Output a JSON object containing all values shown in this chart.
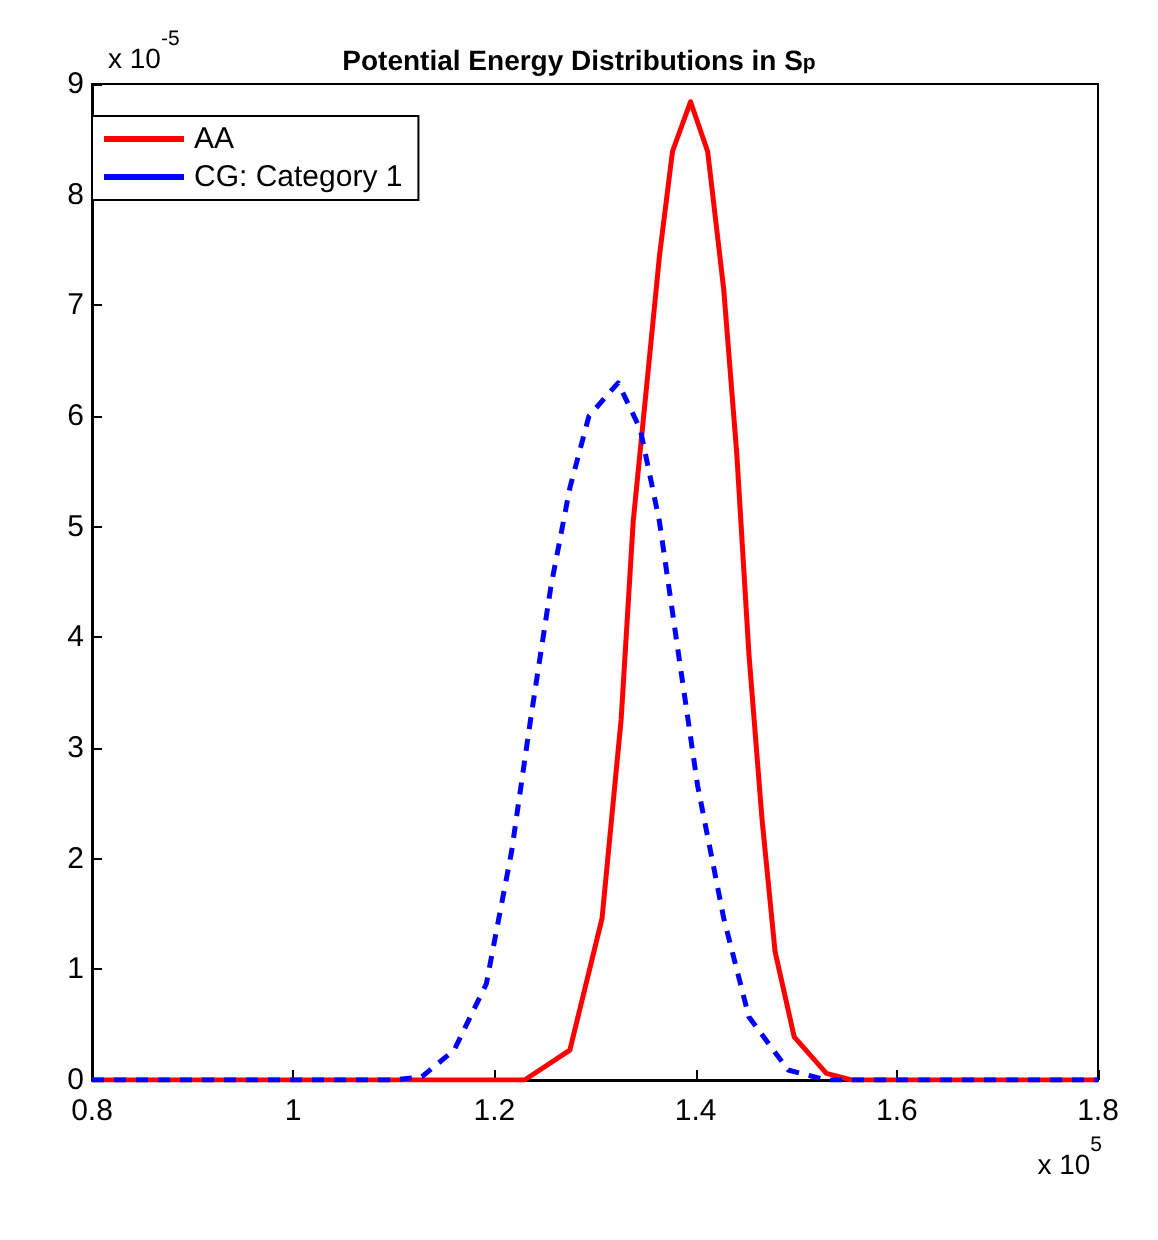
{
  "chart_data": {
    "type": "line",
    "title": "Potential Energy Distributions in S$_{p}$",
    "annotations": [
      "x 10$^{-5}$",
      "x 10$^{5}$"
    ],
    "xlim": [
      0.8,
      1.8
    ],
    "xticks": [
      0.8,
      1,
      1.2,
      1.4,
      1.6,
      1.8
    ],
    "ylim": [
      0,
      9
    ],
    "yticks": [
      0,
      1,
      2,
      3,
      4,
      5,
      6,
      7,
      8,
      9
    ],
    "grid": false,
    "legend": "top left",
    "marker": "none",
    "series": [
      {
        "name": "AA",
        "color": "#ff0000",
        "line_style": "solid",
        "x": [
          0.8,
          1.0,
          1.2,
          1.23,
          1.275,
          1.307,
          1.326,
          1.338,
          1.351,
          1.364,
          1.377,
          1.395,
          1.412,
          1.428,
          1.441,
          1.453,
          1.466,
          1.479,
          1.498,
          1.53,
          1.555,
          1.6,
          1.8
        ],
        "values": [
          0,
          0,
          0,
          0,
          0.27,
          1.46,
          3.26,
          5.05,
          6.24,
          7.44,
          8.39,
          8.84,
          8.39,
          7.14,
          5.65,
          3.85,
          2.36,
          1.16,
          0.39,
          0.06,
          0,
          0,
          0
        ]
      },
      {
        "name": "CG: Category 1",
        "color": "#0000ff",
        "line_style": "dashed",
        "x": [
          0.8,
          1.0,
          1.1,
          1.128,
          1.16,
          1.192,
          1.217,
          1.236,
          1.256,
          1.275,
          1.294,
          1.323,
          1.345,
          1.364,
          1.383,
          1.402,
          1.428,
          1.453,
          1.492,
          1.53,
          1.6,
          1.8
        ],
        "values": [
          0,
          0,
          0,
          0.03,
          0.27,
          0.87,
          2.06,
          3.26,
          4.45,
          5.35,
          6.0,
          6.3,
          5.88,
          5.05,
          3.85,
          2.66,
          1.46,
          0.57,
          0.09,
          0,
          0,
          0
        ]
      }
    ]
  }
}
